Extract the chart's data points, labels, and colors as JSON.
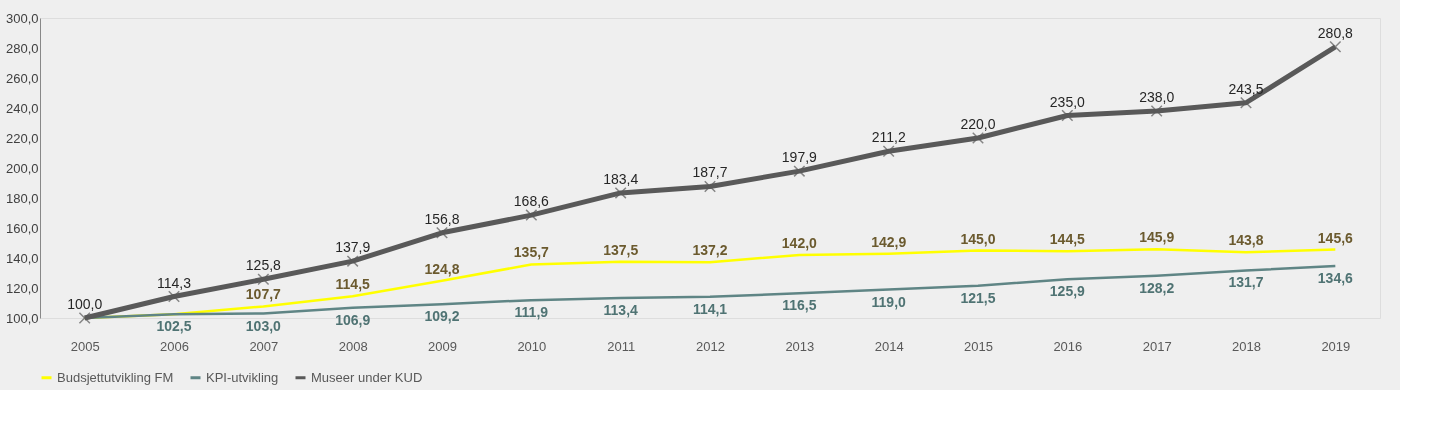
{
  "chart_data": {
    "type": "line",
    "categories": [
      "2005",
      "2006",
      "2007",
      "2008",
      "2009",
      "2010",
      "2011",
      "2012",
      "2013",
      "2014",
      "2015",
      "2016",
      "2017",
      "2018",
      "2019"
    ],
    "series": [
      {
        "name": "Budsjettutvikling FM",
        "color": "#ffff00",
        "marker": "none",
        "values": [
          100.0,
          102.5,
          107.7,
          114.5,
          124.8,
          135.7,
          137.5,
          137.2,
          142.0,
          142.9,
          145.0,
          144.5,
          145.9,
          143.8,
          145.6
        ],
        "value_labels": [
          null,
          null,
          "107,7",
          "114,5",
          "124,8",
          "135,7",
          "137,5",
          "137,2",
          "142,0",
          "142,9",
          "145,0",
          "144,5",
          "145,9",
          "143,8",
          "145,6"
        ]
      },
      {
        "name": "KPI-utvikling",
        "color": "#5f8585",
        "marker": "none",
        "values": [
          100.0,
          102.5,
          103.0,
          106.9,
          109.2,
          111.9,
          113.4,
          114.1,
          116.5,
          119.0,
          121.5,
          125.9,
          128.2,
          131.7,
          134.6
        ],
        "value_labels": [
          null,
          "102,5",
          "103,0",
          "106,9",
          "109,2",
          "111,9",
          "113,4",
          "114,1",
          "116,5",
          "119,0",
          "121,5",
          "125,9",
          "128,2",
          "131,7",
          "134,6"
        ]
      },
      {
        "name": "Museer under KUD",
        "color": "#595959",
        "marker": "cross",
        "values": [
          100.0,
          114.3,
          125.8,
          137.9,
          156.8,
          168.6,
          183.4,
          187.7,
          197.9,
          211.2,
          220.0,
          235.0,
          238.0,
          243.5,
          280.8
        ],
        "value_labels": [
          "100,0",
          "114,3",
          "125,8",
          "137,9",
          "156,8",
          "168,6",
          "183,4",
          "187,7",
          "197,9",
          "211,2",
          "220,0",
          "235,0",
          "238,0",
          "243,5",
          "280,8"
        ]
      }
    ],
    "ylim": [
      100,
      300
    ],
    "yticks": [
      {
        "value": 100,
        "label": "100,0"
      },
      {
        "value": 120,
        "label": "120,0"
      },
      {
        "value": 140,
        "label": "140,0"
      },
      {
        "value": 160,
        "label": "160,0"
      },
      {
        "value": 180,
        "label": "180,0"
      },
      {
        "value": 200,
        "label": "200,0"
      },
      {
        "value": 220,
        "label": "220,0"
      },
      {
        "value": 240,
        "label": "240,0"
      },
      {
        "value": 260,
        "label": "260,0"
      },
      {
        "value": 280,
        "label": "280,0"
      },
      {
        "value": 300,
        "label": "300,0"
      }
    ],
    "grid": false,
    "legend": "bottom",
    "line_style": "solid"
  }
}
